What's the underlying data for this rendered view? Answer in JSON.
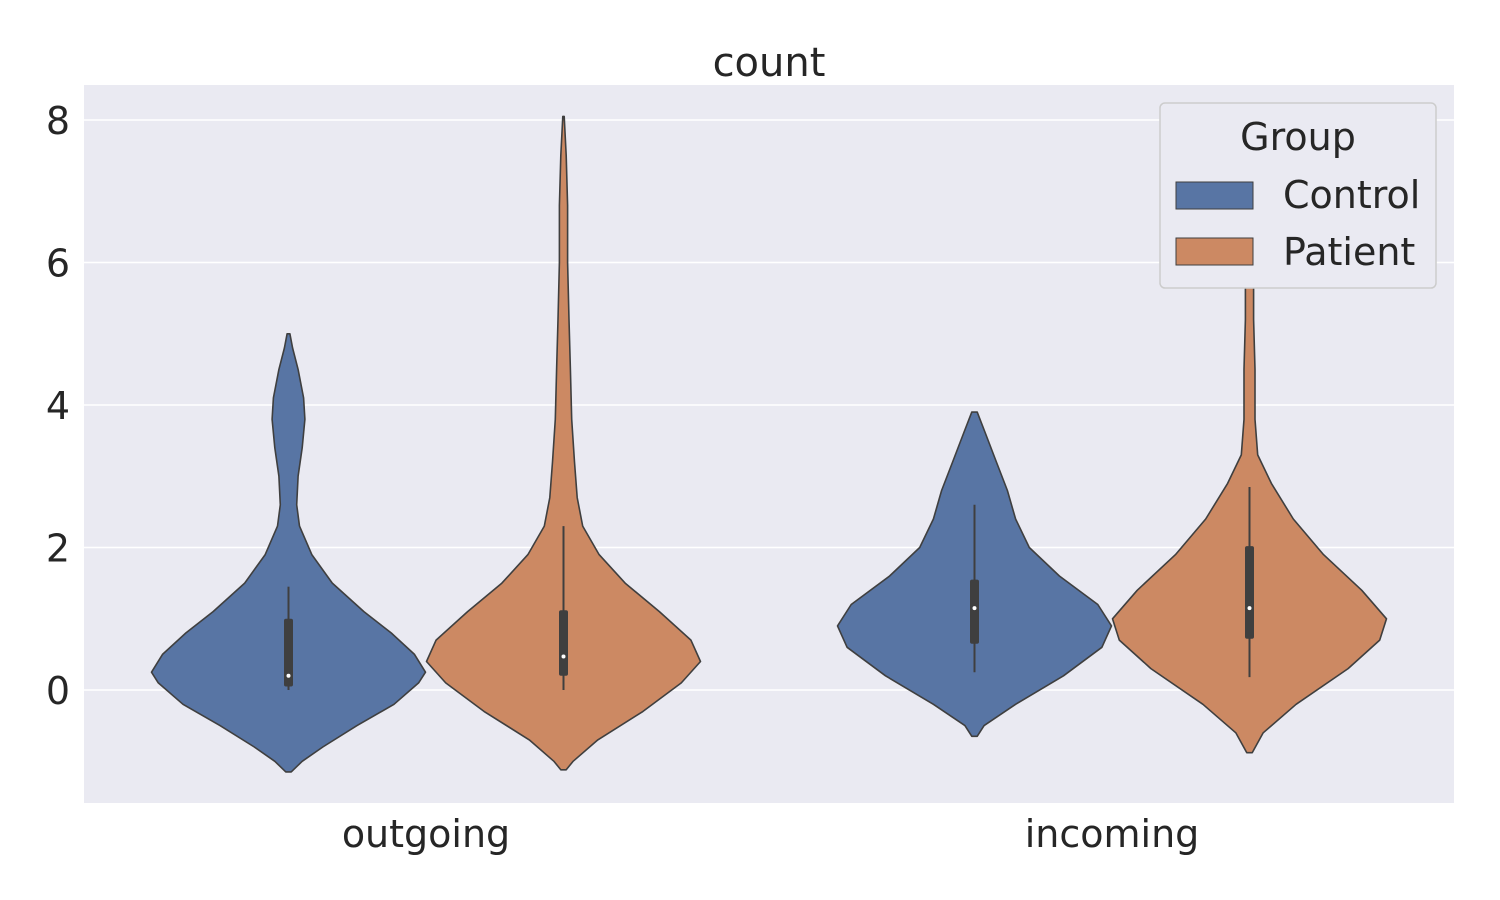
{
  "chart_data": {
    "type": "violin",
    "title": "count",
    "xlabel": "",
    "ylabel": "",
    "ylim": [
      -1.55,
      8.5
    ],
    "yticks": [
      0,
      2,
      4,
      6,
      8
    ],
    "categories": [
      "outgoing",
      "incoming"
    ],
    "legend": {
      "title": "Group",
      "position": "top-right"
    },
    "grid": true,
    "colors": {
      "background": "#eaeaf2",
      "grid": "#ffffff",
      "outline": "#3f3f3f",
      "box": "#3f3f3f",
      "median": "#ffffff"
    },
    "series": [
      {
        "name": "Control",
        "color": "#5875a4",
        "violins": [
          {
            "category": "outgoing",
            "min": -1.15,
            "max": 5.0,
            "profile": [
              [
                -1.15,
                0.02
              ],
              [
                -1.0,
                0.1
              ],
              [
                -0.8,
                0.25
              ],
              [
                -0.5,
                0.5
              ],
              [
                -0.2,
                0.77
              ],
              [
                0.1,
                0.95
              ],
              [
                0.25,
                1.0
              ],
              [
                0.5,
                0.92
              ],
              [
                0.8,
                0.75
              ],
              [
                1.1,
                0.55
              ],
              [
                1.5,
                0.32
              ],
              [
                1.9,
                0.17
              ],
              [
                2.3,
                0.08
              ],
              [
                2.6,
                0.06
              ],
              [
                3.0,
                0.07
              ],
              [
                3.4,
                0.1
              ],
              [
                3.8,
                0.12
              ],
              [
                4.1,
                0.11
              ],
              [
                4.5,
                0.07
              ],
              [
                4.8,
                0.03
              ],
              [
                5.0,
                0.01
              ]
            ],
            "q1": 0.05,
            "median": 0.2,
            "q3": 1.0,
            "whisker_low": 0.0,
            "whisker_high": 1.45
          },
          {
            "category": "incoming",
            "min": -0.65,
            "max": 3.9,
            "profile": [
              [
                -0.65,
                0.02
              ],
              [
                -0.5,
                0.07
              ],
              [
                -0.2,
                0.3
              ],
              [
                0.2,
                0.65
              ],
              [
                0.6,
                0.93
              ],
              [
                0.9,
                1.0
              ],
              [
                1.2,
                0.9
              ],
              [
                1.6,
                0.62
              ],
              [
                2.0,
                0.4
              ],
              [
                2.4,
                0.3
              ],
              [
                2.8,
                0.24
              ],
              [
                3.2,
                0.16
              ],
              [
                3.6,
                0.08
              ],
              [
                3.9,
                0.02
              ]
            ],
            "q1": 0.65,
            "median": 1.15,
            "q3": 1.55,
            "whisker_low": 0.25,
            "whisker_high": 2.6
          }
        ]
      },
      {
        "name": "Patient",
        "color": "#cc8963",
        "violins": [
          {
            "category": "outgoing",
            "min": -1.12,
            "max": 8.05,
            "profile": [
              [
                -1.12,
                0.02
              ],
              [
                -1.0,
                0.07
              ],
              [
                -0.7,
                0.25
              ],
              [
                -0.3,
                0.58
              ],
              [
                0.1,
                0.86
              ],
              [
                0.4,
                1.0
              ],
              [
                0.7,
                0.93
              ],
              [
                1.1,
                0.7
              ],
              [
                1.5,
                0.45
              ],
              [
                1.9,
                0.26
              ],
              [
                2.3,
                0.14
              ],
              [
                2.7,
                0.1
              ],
              [
                3.2,
                0.08
              ],
              [
                3.8,
                0.06
              ],
              [
                4.5,
                0.05
              ],
              [
                5.2,
                0.04
              ],
              [
                6.0,
                0.03
              ],
              [
                6.8,
                0.03
              ],
              [
                7.5,
                0.02
              ],
              [
                8.05,
                0.005
              ]
            ],
            "q1": 0.2,
            "median": 0.47,
            "q3": 1.12,
            "whisker_low": 0.0,
            "whisker_high": 2.3
          },
          {
            "category": "incoming",
            "min": -0.88,
            "max": 7.6,
            "profile": [
              [
                -0.88,
                0.02
              ],
              [
                -0.6,
                0.1
              ],
              [
                -0.2,
                0.34
              ],
              [
                0.3,
                0.72
              ],
              [
                0.7,
                0.95
              ],
              [
                1.0,
                1.0
              ],
              [
                1.4,
                0.82
              ],
              [
                1.9,
                0.54
              ],
              [
                2.4,
                0.32
              ],
              [
                2.9,
                0.16
              ],
              [
                3.3,
                0.06
              ],
              [
                3.8,
                0.04
              ],
              [
                4.5,
                0.04
              ],
              [
                5.2,
                0.03
              ],
              [
                6.0,
                0.03
              ],
              [
                6.8,
                0.02
              ],
              [
                7.6,
                0.005
              ]
            ],
            "q1": 0.72,
            "median": 1.15,
            "q3": 2.02,
            "whisker_low": 0.18,
            "whisker_high": 2.85
          }
        ]
      }
    ]
  }
}
